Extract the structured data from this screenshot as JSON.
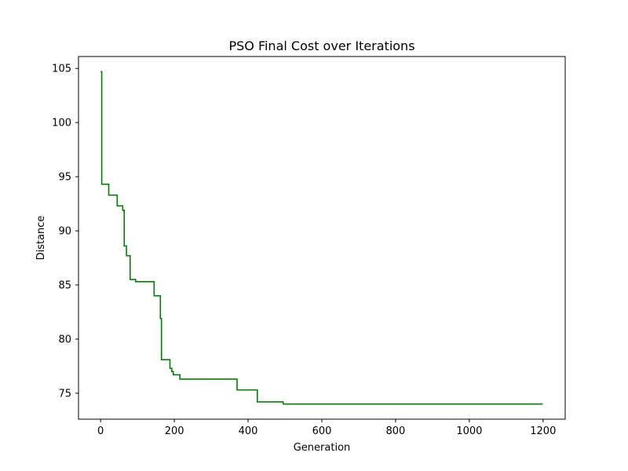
{
  "chart_data": {
    "type": "line",
    "title": "PSO Final Cost over Iterations",
    "xlabel": "Generation",
    "ylabel": "Distance",
    "xlim": [
      -60,
      1260
    ],
    "ylim": [
      72.6,
      106.1
    ],
    "xticks": [
      0,
      200,
      400,
      600,
      800,
      1000,
      1200
    ],
    "yticks": [
      75,
      80,
      85,
      90,
      95,
      100,
      105
    ],
    "grid": false,
    "line_color": "#008000",
    "series": [
      {
        "step": "post",
        "x": [
          0,
          3,
          22,
          33,
          45,
          60,
          64,
          67,
          70,
          80,
          88,
          95,
          145,
          162,
          165,
          188,
          193,
          197,
          215,
          255,
          370,
          425,
          495,
          1199
        ],
        "y": [
          104.7,
          94.3,
          93.3,
          93.3,
          92.3,
          91.9,
          88.6,
          88.6,
          87.7,
          85.5,
          85.5,
          85.3,
          84.0,
          81.9,
          78.1,
          77.3,
          77.0,
          76.7,
          76.3,
          76.3,
          75.3,
          74.2,
          74.0,
          74.0
        ]
      }
    ]
  }
}
